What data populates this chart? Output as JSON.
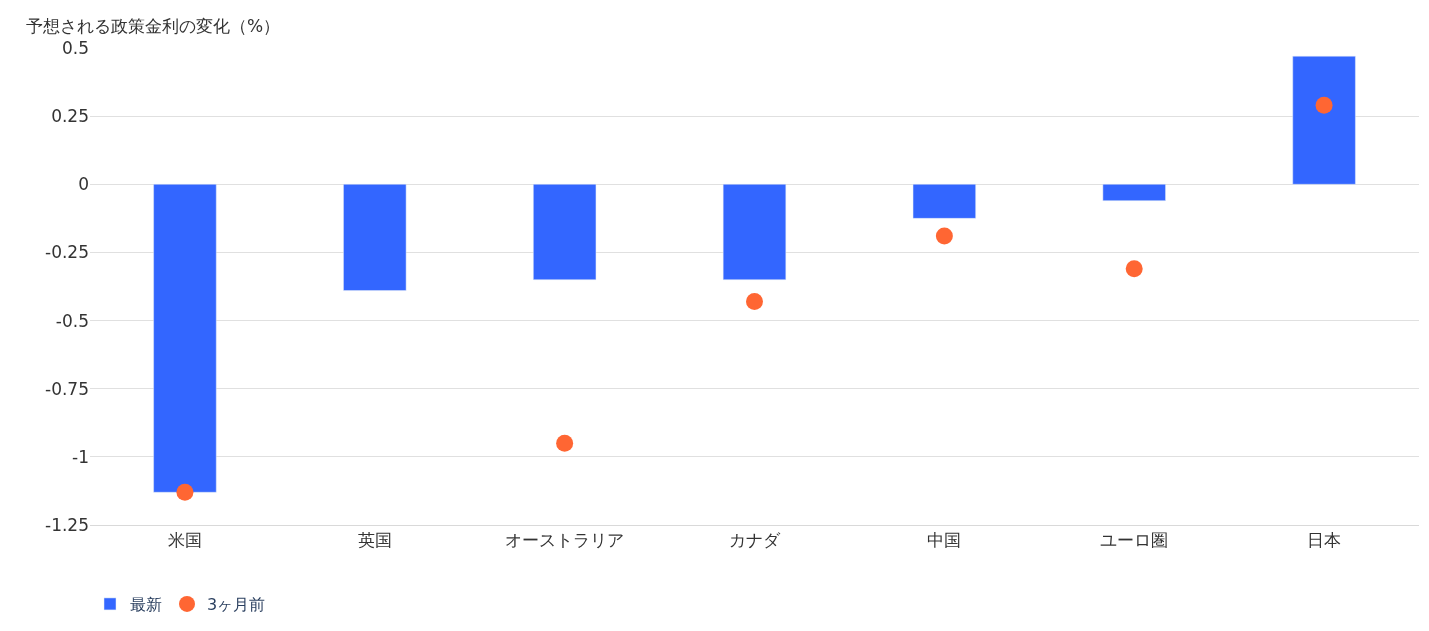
{
  "chart_data": {
    "type": "bar",
    "ylabel": "予想される政策金利の変化（%）",
    "categories": [
      "米国",
      "英国",
      "オーストラリア",
      "カナダ",
      "中国",
      "ユーロ圏",
      "日本"
    ],
    "series": [
      {
        "name": "最新",
        "color": "#3366ff",
        "values": [
          -1.13,
          -0.39,
          -0.35,
          -0.35,
          -0.125,
          -0.06,
          0.47
        ]
      },
      {
        "name": "3ヶ月前",
        "type": "scatter",
        "color": "#ff6633",
        "marker": "circle",
        "values": [
          -1.13,
          null,
          -0.95,
          -0.43,
          -0.19,
          -0.31,
          0.29
        ]
      }
    ],
    "ylim": [
      -1.25,
      0.5
    ],
    "yticks": [
      0.5,
      0.25,
      0,
      -0.25,
      -0.5,
      -0.75,
      -1,
      -1.25
    ],
    "grid": "y",
    "legend": "bottom left"
  }
}
